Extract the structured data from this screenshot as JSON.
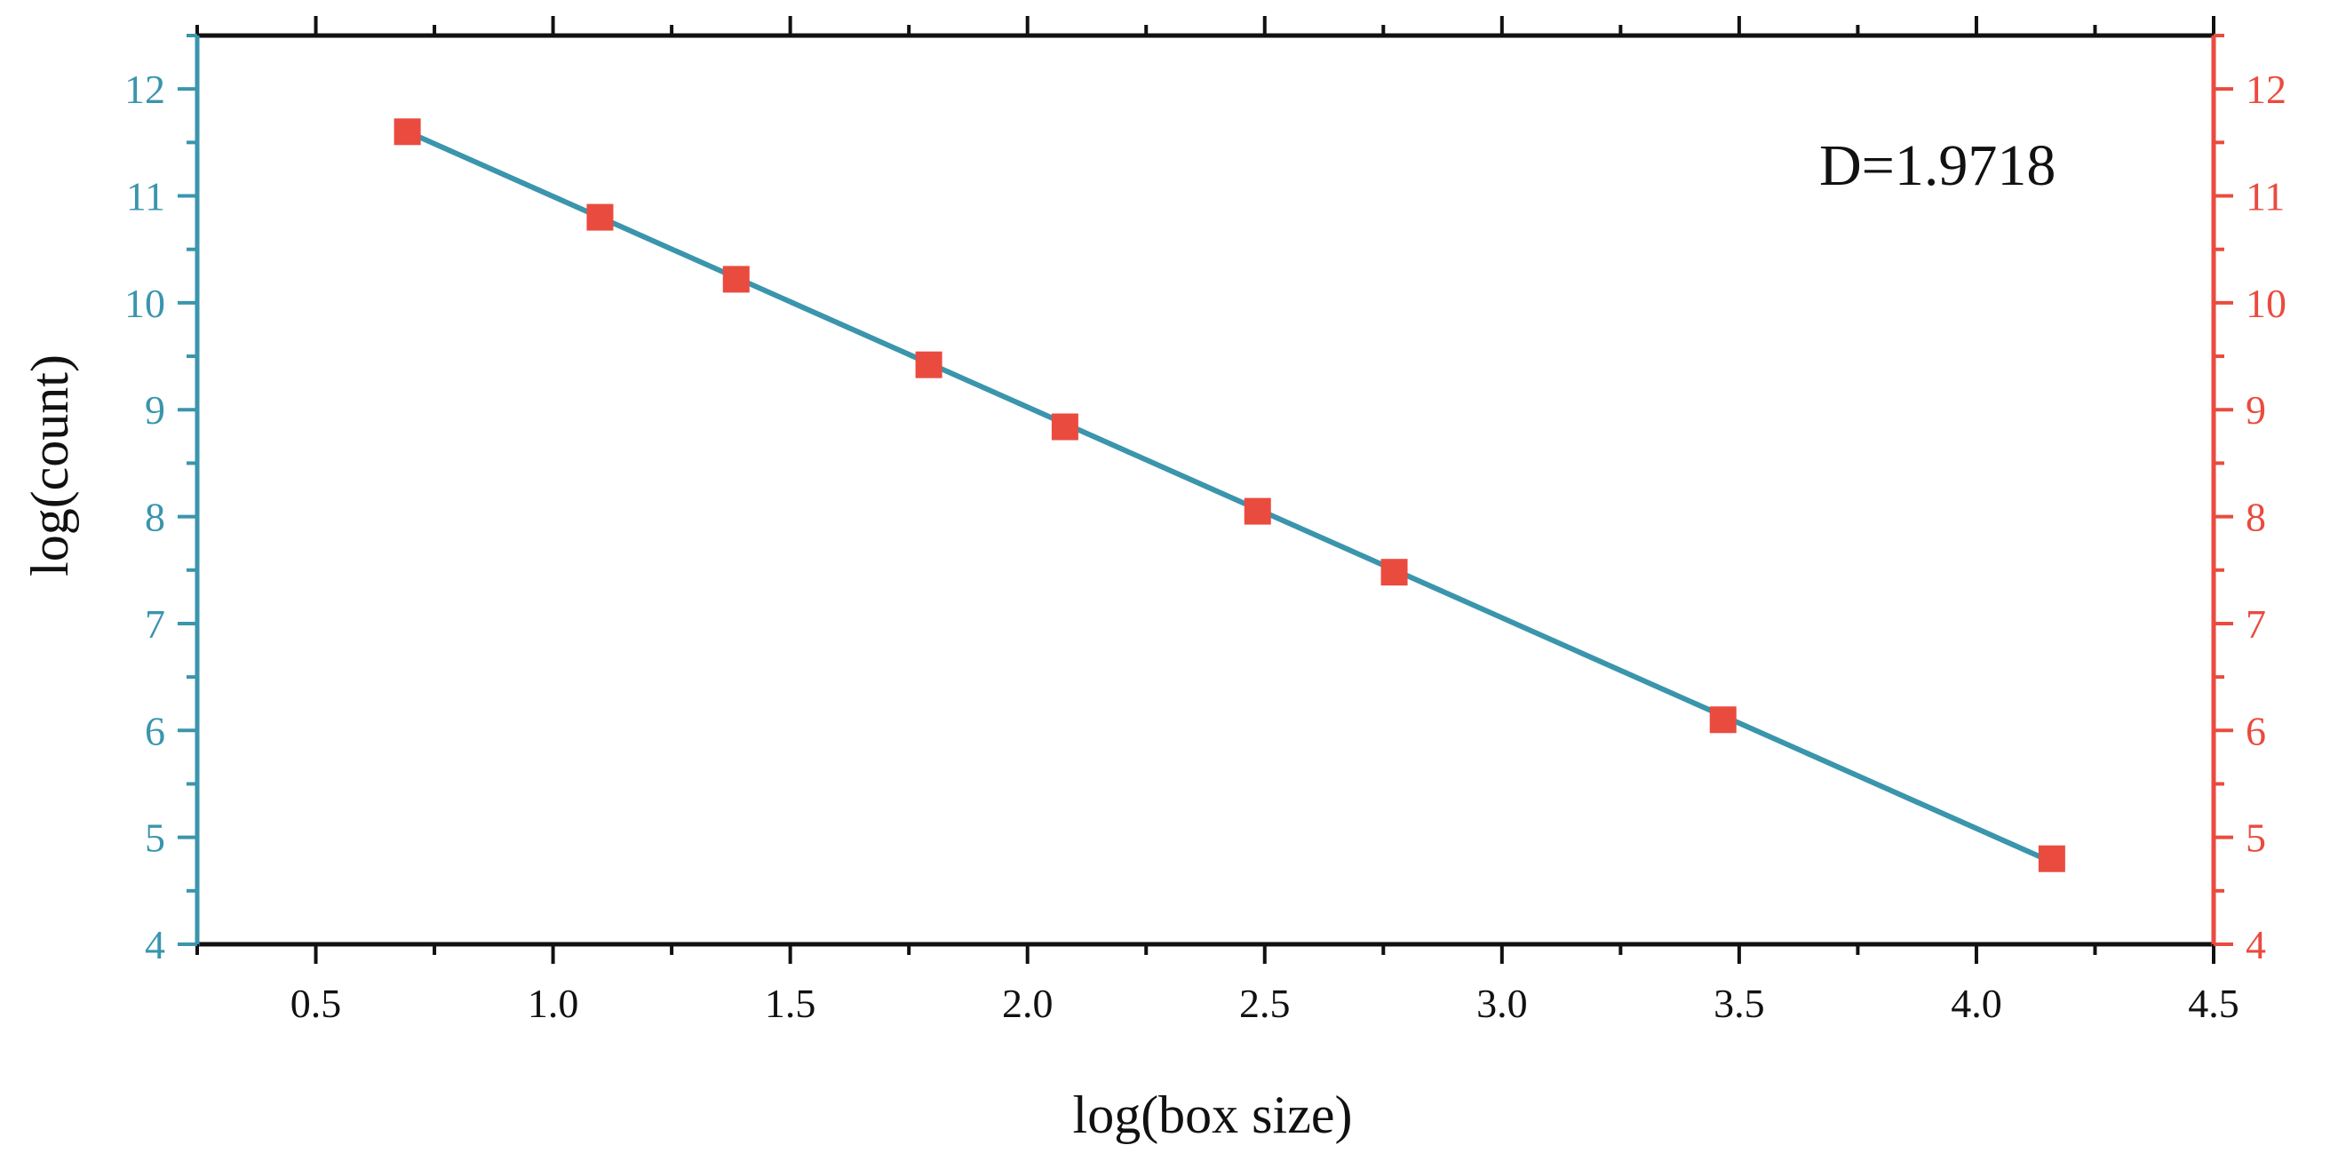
{
  "chart_data": {
    "type": "scatter",
    "title": "",
    "xlabel": "log(box size)",
    "ylabel": "log(count)",
    "xlim": [
      0.25,
      4.5
    ],
    "ylim": [
      4,
      12.5
    ],
    "x_ticks": [
      "0.5",
      "1.0",
      "1.5",
      "2.0",
      "2.5",
      "3.0",
      "3.5",
      "4.0",
      "4.5"
    ],
    "y_ticks": [
      "4",
      "5",
      "6",
      "7",
      "8",
      "9",
      "10",
      "11",
      "12"
    ],
    "y_ticks_right": [
      "4",
      "5",
      "6",
      "7",
      "8",
      "9",
      "10",
      "11",
      "12"
    ],
    "grid": false,
    "annotation": "D=1.9718",
    "series": [
      {
        "style": "markers",
        "marker": "square",
        "color": "#ea4b3f",
        "x": [
          0.693,
          1.099,
          1.386,
          1.792,
          2.079,
          2.485,
          2.773,
          3.466,
          4.159
        ],
        "y": [
          11.6,
          10.8,
          10.22,
          9.42,
          8.84,
          8.05,
          7.48,
          6.1,
          4.8
        ]
      },
      {
        "style": "line",
        "color": "#3a95ad",
        "x": [
          0.693,
          4.159
        ],
        "y": [
          11.6,
          4.77
        ]
      }
    ],
    "colors": {
      "left_axis": "#3a95ad",
      "right_axis": "#ea4b3f",
      "frame": "#111111"
    }
  }
}
